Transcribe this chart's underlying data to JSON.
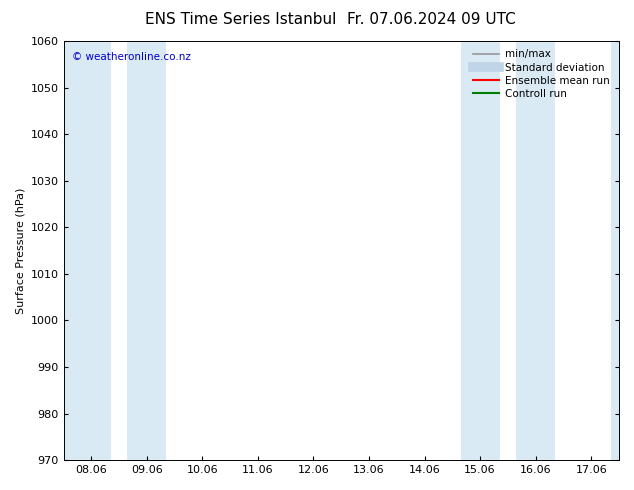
{
  "title": "ENS Time Series Istanbul",
  "title2": "Fr. 07.06.2024 09 UTC",
  "ylabel": "Surface Pressure (hPa)",
  "watermark": "© weatheronline.co.nz",
  "ylim": [
    970,
    1060
  ],
  "yticks": [
    970,
    980,
    990,
    1000,
    1010,
    1020,
    1030,
    1040,
    1050,
    1060
  ],
  "x_labels": [
    "08.06",
    "09.06",
    "10.06",
    "11.06",
    "12.06",
    "13.06",
    "14.06",
    "15.06",
    "16.06",
    "17.06"
  ],
  "shaded_color": "#daeaf5",
  "legend_entries": [
    {
      "label": "min/max",
      "color": "#999999",
      "lw": 1.2
    },
    {
      "label": "Standard deviation",
      "color": "#c0d4e8",
      "lw": 7
    },
    {
      "label": "Ensemble mean run",
      "color": "#ff0000",
      "lw": 1.5
    },
    {
      "label": "Controll run",
      "color": "#008000",
      "lw": 1.5
    }
  ],
  "bg_color": "#ffffff",
  "font_color": "#000000",
  "title_fontsize": 11,
  "label_fontsize": 8,
  "tick_fontsize": 8,
  "legend_fontsize": 7.5,
  "watermark_color": "#0000cc",
  "watermark_fontsize": 7.5
}
